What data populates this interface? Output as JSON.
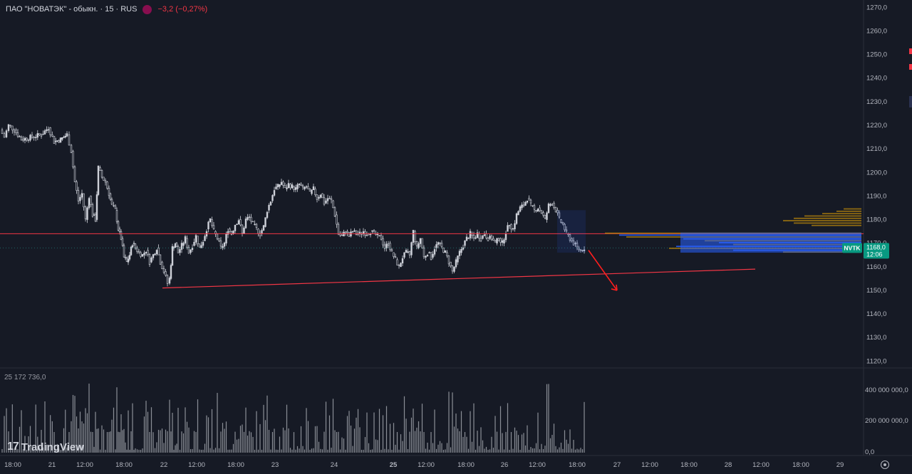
{
  "legend": {
    "instrument": "ПАО \"НОВАТЭК\" - обыкн. · 15 · RUS",
    "change": "−3,2 (−0,27%)"
  },
  "volume_label": "25 172 736,0",
  "branding": {
    "logo_text": "TradingView",
    "logo_mark": "17"
  },
  "price_tag": {
    "ticker": "NVTK",
    "price": "1168,0",
    "countdown": "12:06"
  },
  "colors": {
    "background": "#161a25",
    "up": "#26a69a",
    "down": "#ef5350",
    "candle": "#d1d4dc",
    "support_line": "#f23645",
    "profile_gold": "#b8860b",
    "profile_blue": "#2962ff",
    "price_tag_bg": "#089981"
  },
  "chart_data": [
    {
      "type": "candlestick",
      "interval": "15",
      "y_axis": {
        "ticks": [
          "1120,0",
          "1130,0",
          "1140,0",
          "1150,0",
          "1160,0",
          "1170,0",
          "1180,0",
          "1190,0",
          "1200,0",
          "1210,0",
          "1220,0",
          "1230,0",
          "1240,0",
          "1250,0",
          "1260,0",
          "1270,0"
        ],
        "ylim": [
          1118,
          1271
        ]
      },
      "x_axis": {
        "ticks": [
          "18:00",
          "21",
          "12:00",
          "18:00",
          "22",
          "12:00",
          "18:00",
          "23",
          "24",
          "25",
          "12:00",
          "18:00",
          "26",
          "12:00",
          "18:00",
          "27",
          "12:00",
          "18:00",
          "28",
          "12:00",
          "18:00",
          "29"
        ]
      },
      "price_path": [
        [
          0,
          1218
        ],
        [
          6,
          1215
        ],
        [
          12,
          1220
        ],
        [
          20,
          1218
        ],
        [
          30,
          1214
        ],
        [
          45,
          1215
        ],
        [
          58,
          1216
        ],
        [
          68,
          1219
        ],
        [
          76,
          1213
        ],
        [
          85,
          1214
        ],
        [
          94,
          1216
        ],
        [
          100,
          1209
        ],
        [
          105,
          1196
        ],
        [
          110,
          1188
        ],
        [
          115,
          1191
        ],
        [
          120,
          1180
        ],
        [
          125,
          1190
        ],
        [
          130,
          1182
        ],
        [
          134,
          1180
        ],
        [
          138,
          1202
        ],
        [
          143,
          1198
        ],
        [
          148,
          1196
        ],
        [
          153,
          1191
        ],
        [
          157,
          1186
        ],
        [
          162,
          1184
        ],
        [
          166,
          1176
        ],
        [
          170,
          1172
        ],
        [
          174,
          1164
        ],
        [
          178,
          1162
        ],
        [
          182,
          1165
        ],
        [
          186,
          1170
        ],
        [
          190,
          1168
        ],
        [
          195,
          1166
        ],
        [
          200,
          1165
        ],
        [
          205,
          1167
        ],
        [
          210,
          1162
        ],
        [
          215,
          1165
        ],
        [
          220,
          1168
        ],
        [
          225,
          1162
        ],
        [
          230,
          1158
        ],
        [
          235,
          1153
        ],
        [
          238,
          1155
        ],
        [
          242,
          1168
        ],
        [
          246,
          1170
        ],
        [
          250,
          1166
        ],
        [
          255,
          1169
        ],
        [
          260,
          1172
        ],
        [
          265,
          1166
        ],
        [
          270,
          1169
        ],
        [
          275,
          1173
        ],
        [
          280,
          1168
        ],
        [
          285,
          1171
        ],
        [
          290,
          1176
        ],
        [
          295,
          1180
        ],
        [
          300,
          1175
        ],
        [
          305,
          1172
        ],
        [
          310,
          1168
        ],
        [
          315,
          1170
        ],
        [
          320,
          1176
        ],
        [
          325,
          1174
        ],
        [
          330,
          1178
        ],
        [
          335,
          1180
        ],
        [
          340,
          1174
        ],
        [
          345,
          1180
        ],
        [
          350,
          1181
        ],
        [
          355,
          1178
        ],
        [
          360,
          1176
        ],
        [
          365,
          1174
        ],
        [
          370,
          1177
        ],
        [
          375,
          1184
        ],
        [
          380,
          1188
        ],
        [
          385,
          1193
        ],
        [
          390,
          1194
        ],
        [
          395,
          1196
        ],
        [
          400,
          1193
        ],
        [
          405,
          1195
        ],
        [
          410,
          1194
        ],
        [
          415,
          1193
        ],
        [
          420,
          1195
        ],
        [
          425,
          1193
        ],
        [
          430,
          1194
        ],
        [
          435,
          1191
        ],
        [
          440,
          1193
        ],
        [
          445,
          1189
        ],
        [
          450,
          1191
        ],
        [
          455,
          1187
        ],
        [
          460,
          1189
        ],
        [
          465,
          1188
        ],
        [
          470,
          1182
        ],
        [
          475,
          1174
        ],
        [
          480,
          1173
        ],
        [
          485,
          1175
        ],
        [
          490,
          1173
        ],
        [
          495,
          1175
        ],
        [
          500,
          1174
        ],
        [
          505,
          1174
        ],
        [
          510,
          1175
        ],
        [
          515,
          1174
        ],
        [
          520,
          1175
        ],
        [
          525,
          1174
        ],
        [
          530,
          1173
        ],
        [
          535,
          1172
        ],
        [
          540,
          1168
        ],
        [
          545,
          1170
        ],
        [
          550,
          1166
        ],
        [
          555,
          1163
        ],
        [
          560,
          1160
        ],
        [
          565,
          1164
        ],
        [
          570,
          1166
        ],
        [
          575,
          1165
        ],
        [
          580,
          1175
        ],
        [
          585,
          1168
        ],
        [
          590,
          1172
        ],
        [
          595,
          1164
        ],
        [
          600,
          1166
        ],
        [
          605,
          1164
        ],
        [
          610,
          1168
        ],
        [
          615,
          1170
        ],
        [
          620,
          1168
        ],
        [
          625,
          1166
        ],
        [
          630,
          1162
        ],
        [
          635,
          1158
        ],
        [
          640,
          1162
        ],
        [
          645,
          1166
        ],
        [
          650,
          1169
        ],
        [
          655,
          1172
        ],
        [
          660,
          1174
        ],
        [
          665,
          1172
        ],
        [
          670,
          1174
        ],
        [
          675,
          1172
        ],
        [
          680,
          1174
        ],
        [
          685,
          1172
        ],
        [
          690,
          1172
        ],
        [
          695,
          1170
        ],
        [
          700,
          1172
        ],
        [
          705,
          1170
        ],
        [
          710,
          1175
        ],
        [
          715,
          1178
        ],
        [
          720,
          1176
        ],
        [
          725,
          1182
        ],
        [
          730,
          1185
        ],
        [
          735,
          1186
        ],
        [
          740,
          1189
        ],
        [
          745,
          1186
        ],
        [
          750,
          1184
        ],
        [
          755,
          1185
        ],
        [
          760,
          1183
        ],
        [
          765,
          1180
        ],
        [
          770,
          1186
        ],
        [
          775,
          1187
        ],
        [
          780,
          1184
        ],
        [
          785,
          1180
        ],
        [
          790,
          1178
        ],
        [
          795,
          1174
        ],
        [
          800,
          1172
        ],
        [
          805,
          1170
        ],
        [
          810,
          1168
        ],
        [
          815,
          1167
        ],
        [
          820,
          1168
        ]
      ],
      "current_price": 1168.0,
      "support_line": {
        "from": [
          228,
          1151
        ],
        "to": [
          1060,
          1159
        ]
      },
      "horizontal_line": 1174,
      "volume_axis": {
        "ticks": [
          "400 000 000,0",
          "200 000 000,0",
          "0,0"
        ]
      }
    }
  ]
}
